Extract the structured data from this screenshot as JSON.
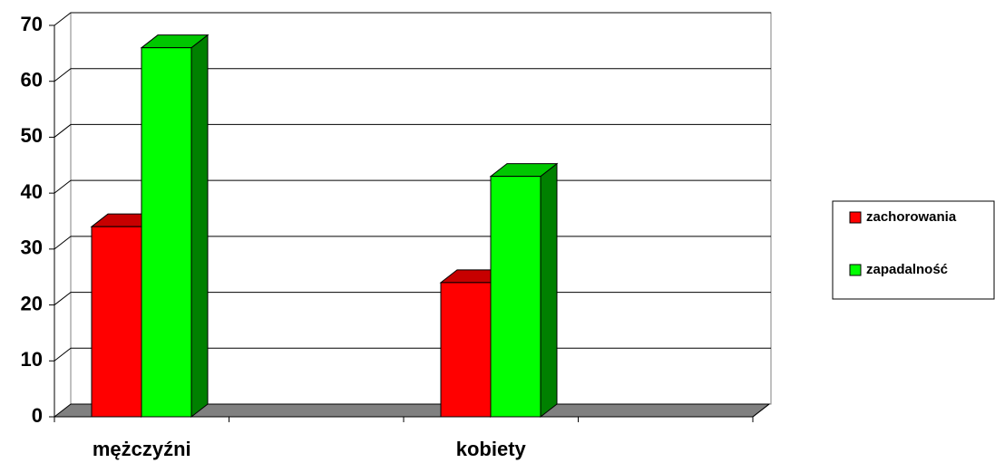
{
  "chart_data": {
    "type": "bar3d",
    "categories": [
      "mężczyźni",
      null,
      "kobiety",
      null
    ],
    "series": [
      {
        "name": "zachorowania",
        "color": "#ff0000",
        "values": [
          34,
          null,
          24,
          null
        ]
      },
      {
        "name": "zapadalność",
        "color": "#00ff00",
        "values": [
          66,
          null,
          43,
          null
        ]
      }
    ],
    "ylim": [
      0,
      70
    ],
    "yticks": [
      0,
      10,
      20,
      30,
      40,
      50,
      60,
      70
    ],
    "grid": true,
    "legend": "right"
  }
}
